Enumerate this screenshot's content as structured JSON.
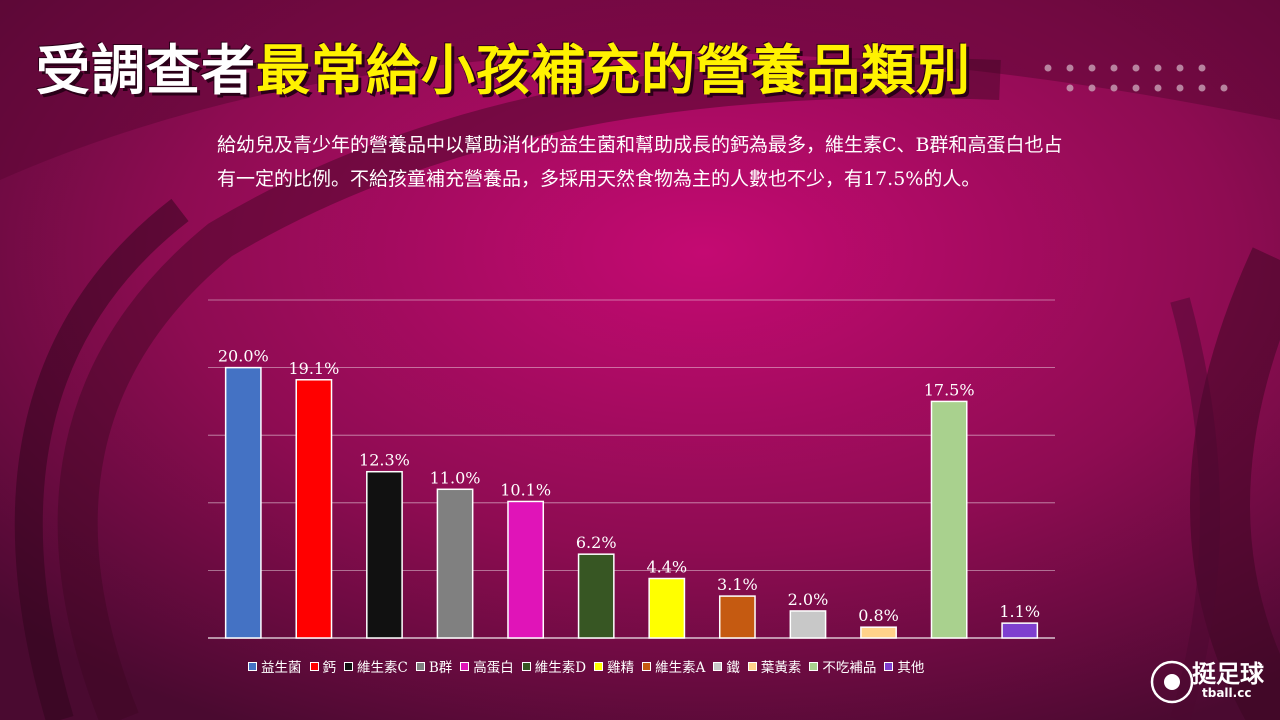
{
  "title": {
    "part1": "受調查者",
    "part2": "最常給小孩補充的營養品類別"
  },
  "description": "給幼兒及青少年的營養品中以幫助消化的益生菌和幫助成長的鈣為最多，維生素C、B群和高蛋白也占有一定的比例。不給孩童補充營養品，多採用天然食物為主的人數也不少，有17.5%的人。",
  "logo": {
    "text": "挺足球",
    "sub": "tball.cc"
  },
  "colors": {
    "background": "#6d0a3f",
    "accent": "#d1006a",
    "title_highlight": "#fff200"
  },
  "chart_data": {
    "type": "bar",
    "categories": [
      "益生菌",
      "鈣",
      "維生素C",
      "B群",
      "高蛋白",
      "維生素D",
      "雞精",
      "維生素A",
      "鐵",
      "葉黃素",
      "不吃補品",
      "其他"
    ],
    "values": [
      20.0,
      19.1,
      12.3,
      11.0,
      10.1,
      6.2,
      4.4,
      3.1,
      2.0,
      0.8,
      17.5,
      1.1
    ],
    "labels": [
      "20.0%",
      "19.1%",
      "12.3%",
      "11.0%",
      "10.1%",
      "6.2%",
      "4.4%",
      "3.1%",
      "2.0%",
      "0.8%",
      "17.5%",
      "1.1%"
    ],
    "bar_colors": [
      "#4472c4",
      "#ff0000",
      "#111111",
      "#808080",
      "#e014b8",
      "#375623",
      "#ffff00",
      "#c55a11",
      "#c8c8c8",
      "#ffd28a",
      "#a9d18e",
      "#7e3fcf"
    ],
    "ylim": [
      0,
      25
    ],
    "grid": true,
    "legend": "bottom"
  }
}
